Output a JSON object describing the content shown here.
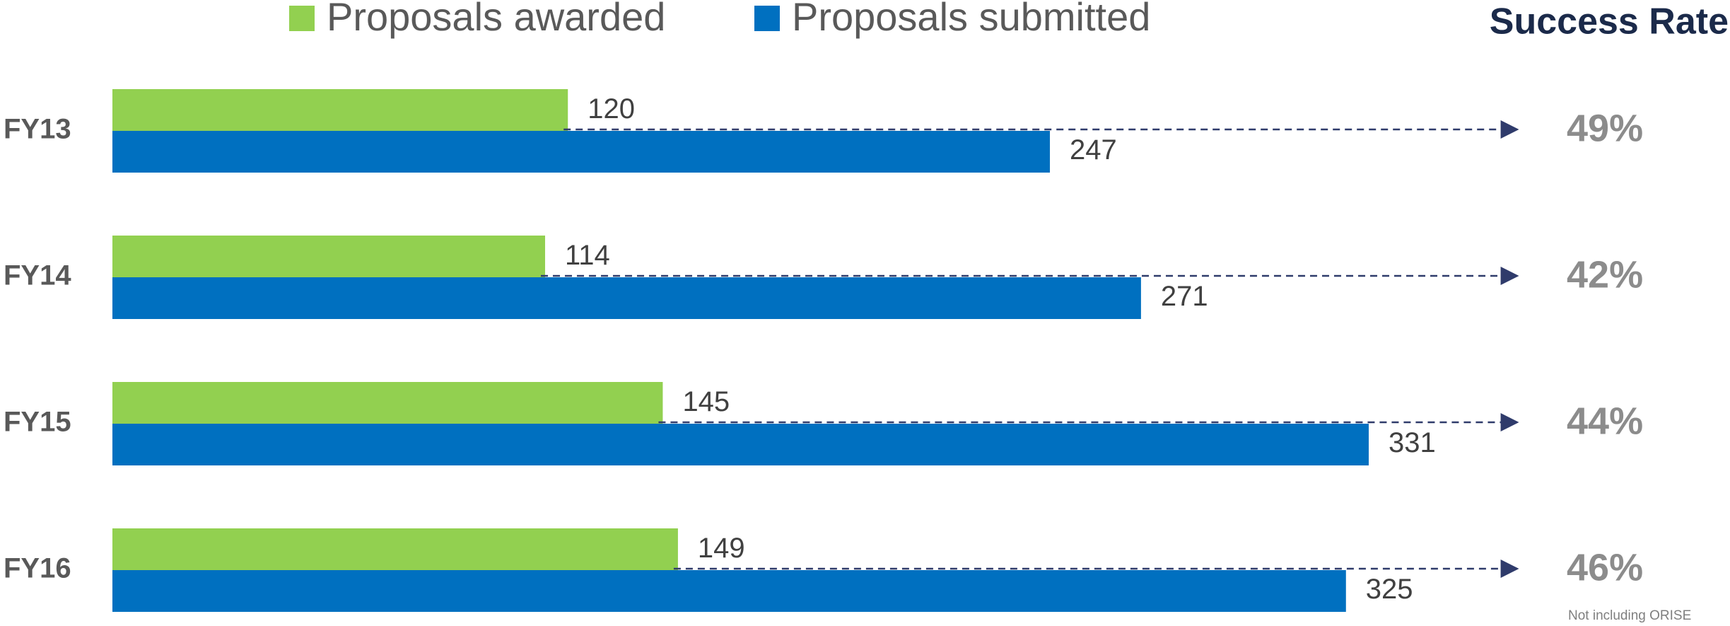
{
  "chart_data": {
    "type": "bar",
    "categories": [
      "FY13",
      "FY14",
      "FY15",
      "FY16"
    ],
    "series": [
      {
        "name": "Proposals awarded",
        "color": "#92d050",
        "values": [
          120,
          114,
          145,
          149
        ]
      },
      {
        "name": "Proposals submitted",
        "color": "#0070c0",
        "values": [
          247,
          271,
          331,
          325
        ]
      }
    ],
    "success_rate": {
      "title": "Success Rate",
      "values": [
        49,
        42,
        44,
        46
      ],
      "value_labels": [
        "49%",
        "42%",
        "44%",
        "46%"
      ]
    },
    "note": "Not including ORISE"
  }
}
